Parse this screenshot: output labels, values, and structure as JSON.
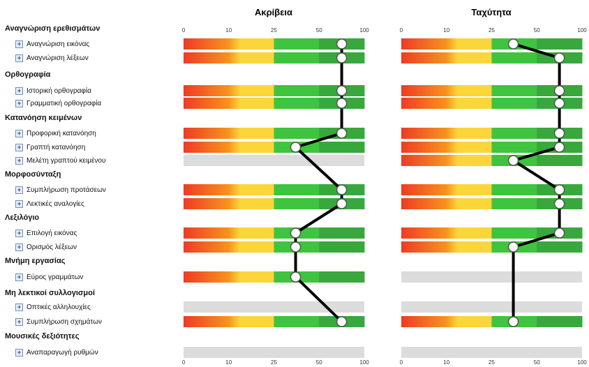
{
  "colors": {
    "red": "#ef3b24",
    "orange": "#f7941d",
    "yellow": "#fbd63a",
    "light_green": "#3ec43e",
    "green": "#1f9a2e",
    "dark_green": "#38a83c",
    "gray": "#dcdcdc",
    "line": "#000000"
  },
  "categories": [
    {
      "label": "Αναγνώριση ερεθισμάτων",
      "items": [
        "Αναγνώριση εικόνας",
        "Αναγνώριση λέξεων"
      ]
    },
    {
      "label": "Ορθογραφία",
      "items": [
        "Ιστορική ορθογραφία",
        "Γραμματική ορθογραφία"
      ]
    },
    {
      "label": "Κατανόηση κειμένων",
      "items": [
        "Προφορική κατανόηση",
        "Γραπτή κατανόηση",
        "Μελέτη γραπτού κειμένου"
      ]
    },
    {
      "label": "Μορφοσύνταξη",
      "items": [
        "Συμπλήρωση προτάσεων",
        "Λεκτικές αναλογίες"
      ]
    },
    {
      "label": "Λεξιλόγιο",
      "items": [
        "Επιλογή εικόνας",
        "Ορισμός λέξεων"
      ]
    },
    {
      "label": "Μνήμη εργασίας",
      "items": [
        "Εύρος γραμμάτων"
      ]
    },
    {
      "label": "Μη λεκτικοί συλλογισμοί",
      "items": [
        "Οπτικές αλληλουχίες",
        "Συμπλήρωση σχημάτων"
      ]
    },
    {
      "label": "Μουσικές δεξιότητες",
      "items": [
        "Αναπαραγωγή ρυθμών"
      ]
    }
  ],
  "chart_data": [
    {
      "type": "line",
      "title": "Ακρίβεια",
      "scale_ticks": [
        0,
        10,
        25,
        50,
        100
      ],
      "scale_bands": [
        "0-10",
        "10-25",
        "25-50",
        "50-100"
      ],
      "x_range": [
        0,
        100
      ],
      "categories": [
        "Αναγνώριση εικόνας",
        "Αναγνώριση λέξεων",
        "Ιστορική ορθογραφία",
        "Γραμματική ορθογραφία",
        "Προφορική κατανόηση",
        "Γραπτή κατανόηση",
        "Μελέτη γραπτού κειμένου",
        "Συμπλήρωση προτάσεων",
        "Λεκτικές αναλογίες",
        "Επιλογή εικόνας",
        "Ορισμός λέξεων",
        "Εύρος γραμμάτων",
        "Οπτικές αλληλουχίες",
        "Συμπλήρωση σχημάτων",
        "Αναπαραγωγή ρυθμών"
      ],
      "values": [
        75,
        75,
        75,
        75,
        75,
        37,
        null,
        75,
        75,
        37,
        37,
        37,
        null,
        75,
        null
      ]
    },
    {
      "type": "line",
      "title": "Ταχύτητα",
      "scale_ticks": [
        0,
        10,
        25,
        50,
        100
      ],
      "scale_bands": [
        "0-10",
        "10-25",
        "25-50",
        "50-100"
      ],
      "x_range": [
        0,
        100
      ],
      "categories": [
        "Αναγνώριση εικόνας",
        "Αναγνώριση λέξεων",
        "Ιστορική ορθογραφία",
        "Γραμματική ορθογραφία",
        "Προφορική κατανόηση",
        "Γραπτή κατανόηση",
        "Μελέτη γραπτού κειμένου",
        "Συμπλήρωση προτάσεων",
        "Λεκτικές αναλογίες",
        "Επιλογή εικόνας",
        "Ορισμός λέξεων",
        "Εύρος γραμμάτων",
        "Οπτικές αλληλουχίες",
        "Συμπλήρωση σχημάτων",
        "Αναπαραγωγή ρυθμών"
      ],
      "values": [
        37,
        75,
        75,
        75,
        75,
        75,
        37,
        75,
        75,
        75,
        37,
        null,
        null,
        37,
        null
      ]
    }
  ]
}
